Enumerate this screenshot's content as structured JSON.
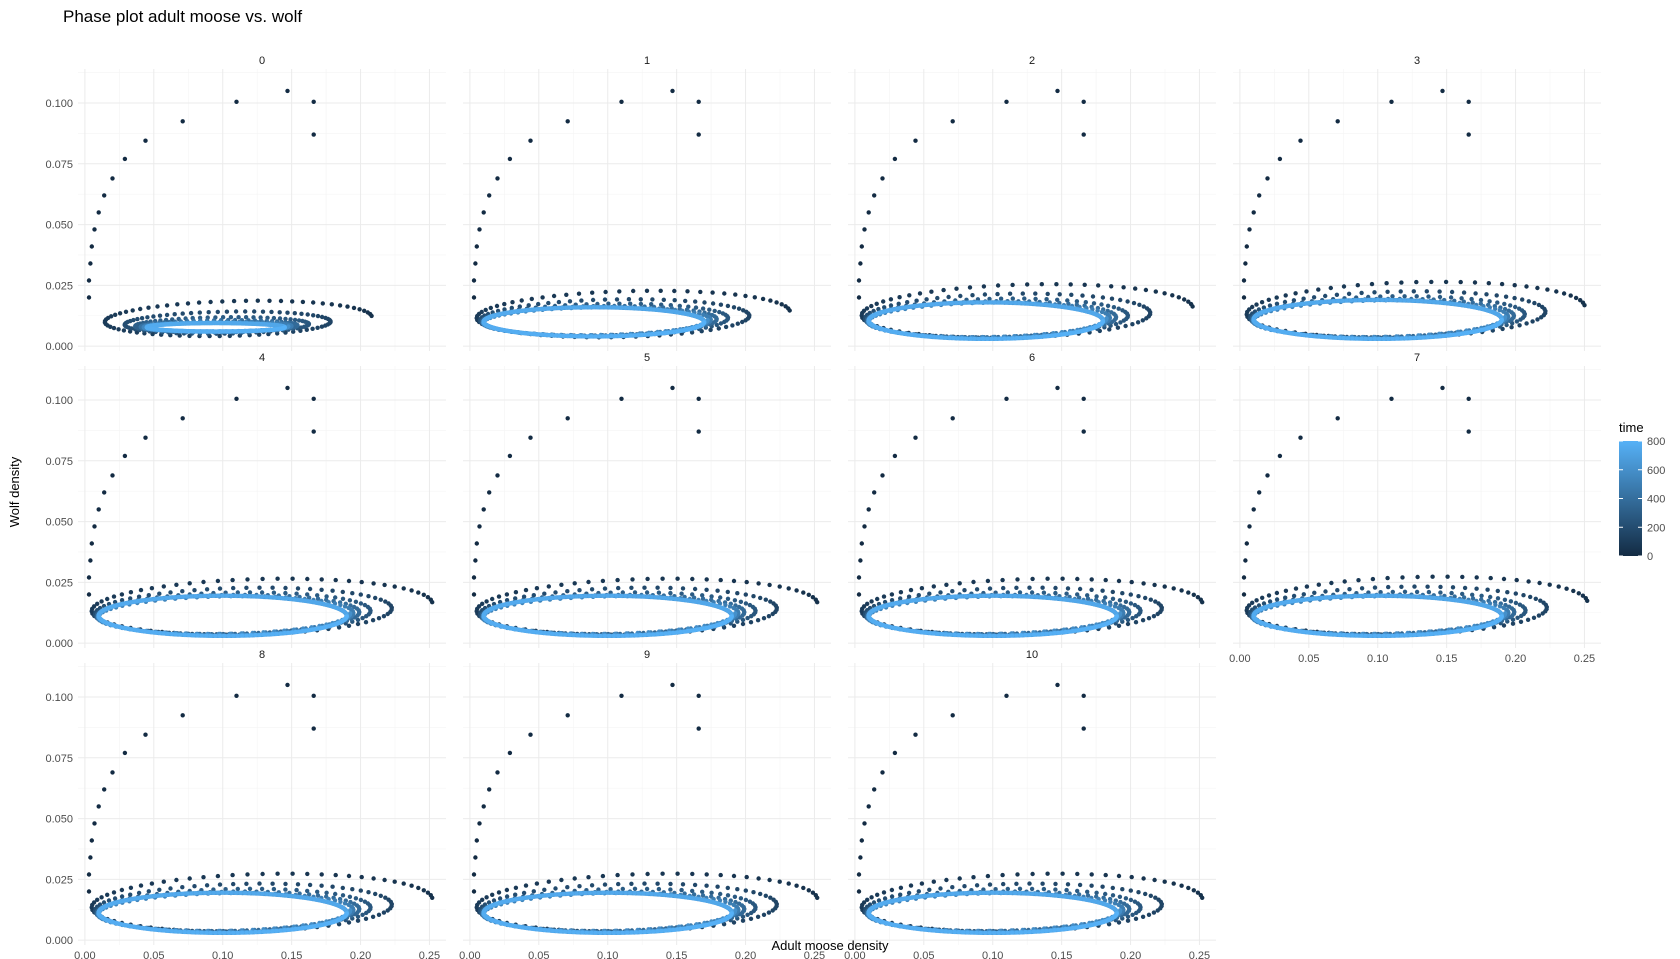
{
  "chart_data": {
    "type": "scatter",
    "title": "Phase plot adult moose vs. wolf",
    "xlabel": "Adult moose density",
    "ylabel": "Wolf density",
    "facets": [
      "0",
      "1",
      "2",
      "3",
      "4",
      "5",
      "6",
      "7",
      "8",
      "9",
      "10"
    ],
    "xlim": [
      -0.005,
      0.262
    ],
    "ylim": [
      -0.002,
      0.114
    ],
    "x_ticks": [
      "0.00",
      "0.05",
      "0.10",
      "0.15",
      "0.20",
      "0.25"
    ],
    "x_tick_values": [
      0,
      0.05,
      0.1,
      0.15,
      0.2,
      0.25
    ],
    "y_ticks": [
      "0.000",
      "0.025",
      "0.050",
      "0.075",
      "0.100"
    ],
    "y_tick_values": [
      0,
      0.025,
      0.05,
      0.075,
      0.1
    ],
    "grid": true,
    "legend": {
      "title": "time",
      "position": "right",
      "ticks": [
        "0",
        "200",
        "400",
        "600",
        "800"
      ],
      "tick_values": [
        0,
        200,
        400,
        600,
        800
      ],
      "range": [
        0,
        800
      ],
      "color_low": "#132B43",
      "color_high": "#56B1F7"
    },
    "initial_transient_points": [
      {
        "x": 0.166,
        "y": 0.087
      },
      {
        "x": 0.166,
        "y": 0.1005
      },
      {
        "x": 0.147,
        "y": 0.105
      },
      {
        "x": 0.11,
        "y": 0.1005
      },
      {
        "x": 0.071,
        "y": 0.0925
      },
      {
        "x": 0.044,
        "y": 0.0845
      },
      {
        "x": 0.029,
        "y": 0.077
      },
      {
        "x": 0.02,
        "y": 0.069
      },
      {
        "x": 0.014,
        "y": 0.062
      },
      {
        "x": 0.01,
        "y": 0.055
      },
      {
        "x": 0.007,
        "y": 0.048
      },
      {
        "x": 0.005,
        "y": 0.041
      },
      {
        "x": 0.004,
        "y": 0.034
      },
      {
        "x": 0.003,
        "y": 0.027
      },
      {
        "x": 0.003,
        "y": 0.02
      }
    ],
    "facet_cycles": [
      {
        "facet": "0",
        "outer_x_max": 0.208,
        "outer_y_max": 0.021,
        "limit_x_min": 0.045,
        "limit_x_max": 0.145,
        "limit_y_min": 0.006,
        "limit_y_max": 0.0095,
        "max_time": 800
      },
      {
        "facet": "1",
        "outer_x_max": 0.232,
        "outer_y_max": 0.025,
        "limit_x_min": 0.01,
        "limit_x_max": 0.17,
        "limit_y_min": 0.004,
        "limit_y_max": 0.016,
        "max_time": 800
      },
      {
        "facet": "2",
        "outer_x_max": 0.245,
        "outer_y_max": 0.028,
        "limit_x_min": 0.01,
        "limit_x_max": 0.18,
        "limit_y_min": 0.003,
        "limit_y_max": 0.018,
        "max_time": 800
      },
      {
        "facet": "3",
        "outer_x_max": 0.25,
        "outer_y_max": 0.029,
        "limit_x_min": 0.01,
        "limit_x_max": 0.19,
        "limit_y_min": 0.003,
        "limit_y_max": 0.019,
        "max_time": 800
      },
      {
        "facet": "4",
        "outer_x_max": 0.252,
        "outer_y_max": 0.029,
        "limit_x_min": 0.01,
        "limit_x_max": 0.19,
        "limit_y_min": 0.003,
        "limit_y_max": 0.0195,
        "max_time": 800
      },
      {
        "facet": "5",
        "outer_x_max": 0.252,
        "outer_y_max": 0.029,
        "limit_x_min": 0.01,
        "limit_x_max": 0.19,
        "limit_y_min": 0.003,
        "limit_y_max": 0.0195,
        "max_time": 800
      },
      {
        "facet": "6",
        "outer_x_max": 0.252,
        "outer_y_max": 0.029,
        "limit_x_min": 0.01,
        "limit_x_max": 0.19,
        "limit_y_min": 0.003,
        "limit_y_max": 0.0195,
        "max_time": 800
      },
      {
        "facet": "7",
        "outer_x_max": 0.252,
        "outer_y_max": 0.03,
        "limit_x_min": 0.01,
        "limit_x_max": 0.19,
        "limit_y_min": 0.003,
        "limit_y_max": 0.0195,
        "max_time": 800
      },
      {
        "facet": "8",
        "outer_x_max": 0.252,
        "outer_y_max": 0.03,
        "limit_x_min": 0.01,
        "limit_x_max": 0.19,
        "limit_y_min": 0.003,
        "limit_y_max": 0.0195,
        "max_time": 800
      },
      {
        "facet": "9",
        "outer_x_max": 0.252,
        "outer_y_max": 0.03,
        "limit_x_min": 0.01,
        "limit_x_max": 0.19,
        "limit_y_min": 0.003,
        "limit_y_max": 0.0195,
        "max_time": 800
      },
      {
        "facet": "10",
        "outer_x_max": 0.252,
        "outer_y_max": 0.03,
        "limit_x_min": 0.01,
        "limit_x_max": 0.19,
        "limit_y_min": 0.003,
        "limit_y_max": 0.0195,
        "max_time": 800
      }
    ]
  }
}
